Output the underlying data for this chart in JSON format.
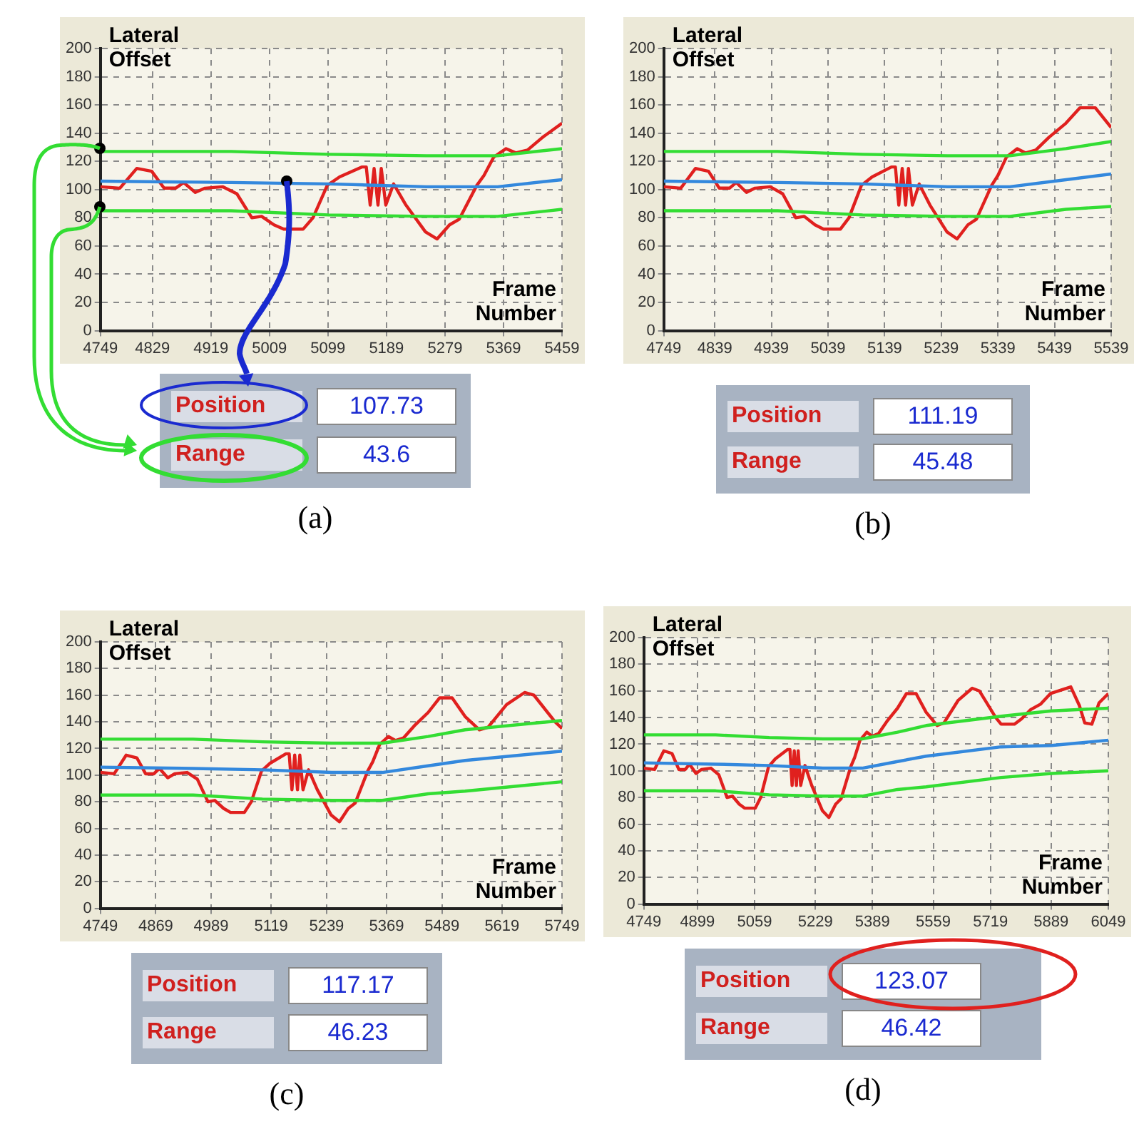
{
  "chart_data": [
    {
      "type": "line",
      "xlabel": "Frame Number",
      "ylabel": "Lateral Offset",
      "xlim": [
        4749,
        5459
      ],
      "xticks": [
        4749,
        4829,
        4919,
        5009,
        5099,
        5189,
        5279,
        5369,
        5459
      ],
      "ylim": [
        0,
        200
      ],
      "yticks": [
        0,
        20,
        40,
        60,
        80,
        100,
        120,
        140,
        160,
        180,
        200
      ],
      "grid": true,
      "marker": "none",
      "series": [
        {
          "color": "#33dd33",
          "x": [
            4749,
            4950,
            5100,
            5250,
            5360,
            5459
          ],
          "values": [
            127,
            127,
            125,
            124,
            124,
            129
          ]
        },
        {
          "color": "#3388dd",
          "x": [
            4749,
            4950,
            5100,
            5250,
            5360,
            5459
          ],
          "values": [
            106,
            105,
            104,
            102,
            102,
            107
          ]
        },
        {
          "color": "#33dd33",
          "x": [
            4749,
            4950,
            5100,
            5250,
            5360,
            5459
          ],
          "values": [
            85,
            85,
            82,
            81,
            81,
            86
          ]
        },
        {
          "color": "#e0201e",
          "x": [
            4749,
            4779,
            4805,
            4828,
            4847,
            4865,
            4877,
            4895,
            4910,
            4937,
            4959,
            4982,
            4997,
            5016,
            5031,
            5061,
            5076,
            5098,
            5117,
            5151,
            5158,
            5164,
            5170,
            5176,
            5181,
            5188,
            5200,
            5219,
            5249,
            5267,
            5286,
            5301,
            5328,
            5339,
            5354,
            5373,
            5388,
            5406,
            5429,
            5459
          ],
          "values": [
            102,
            101,
            115,
            113,
            101,
            101,
            105,
            98,
            101,
            102,
            97,
            80,
            81,
            75,
            72,
            72,
            80,
            103,
            109,
            116,
            116,
            89,
            115,
            89,
            115,
            89,
            104,
            89,
            70,
            65,
            75,
            79,
            103,
            110,
            123,
            129,
            126,
            128,
            137,
            147
          ]
        }
      ]
    },
    {
      "type": "line",
      "xlabel": "Frame Number",
      "ylabel": "Lateral Offset",
      "xlim": [
        4749,
        5539
      ],
      "xticks": [
        4749,
        4839,
        4939,
        5039,
        5139,
        5239,
        5339,
        5439,
        5539
      ],
      "ylim": [
        0,
        200
      ],
      "yticks": [
        0,
        20,
        40,
        60,
        80,
        100,
        120,
        140,
        160,
        180,
        200
      ],
      "grid": true,
      "marker": "none",
      "series": [
        {
          "color": "#33dd33",
          "x": [
            4749,
            4950,
            5100,
            5250,
            5360,
            5459,
            5539
          ],
          "values": [
            127,
            127,
            125,
            124,
            124,
            129,
            134
          ]
        },
        {
          "color": "#3388dd",
          "x": [
            4749,
            4950,
            5100,
            5250,
            5360,
            5459,
            5539
          ],
          "values": [
            106,
            105,
            104,
            102,
            102,
            107,
            111
          ]
        },
        {
          "color": "#33dd33",
          "x": [
            4749,
            4950,
            5100,
            5250,
            5360,
            5459,
            5539
          ],
          "values": [
            85,
            85,
            82,
            81,
            81,
            86,
            88
          ]
        },
        {
          "color": "#e0201e",
          "x": [
            4749,
            4779,
            4805,
            4828,
            4847,
            4865,
            4877,
            4895,
            4910,
            4937,
            4959,
            4982,
            4997,
            5016,
            5031,
            5061,
            5076,
            5098,
            5117,
            5151,
            5158,
            5164,
            5170,
            5176,
            5181,
            5188,
            5200,
            5219,
            5249,
            5267,
            5286,
            5301,
            5328,
            5339,
            5354,
            5373,
            5388,
            5406,
            5429,
            5459,
            5484,
            5511,
            5539
          ],
          "values": [
            102,
            101,
            115,
            113,
            101,
            101,
            105,
            98,
            101,
            102,
            97,
            80,
            81,
            75,
            72,
            72,
            80,
            103,
            109,
            116,
            116,
            89,
            115,
            89,
            115,
            89,
            104,
            89,
            70,
            65,
            75,
            79,
            103,
            110,
            123,
            129,
            126,
            128,
            137,
            147,
            158,
            158,
            144
          ]
        }
      ]
    },
    {
      "type": "other",
      "categories": [
        "Position",
        "Range"
      ],
      "values": [
        107.73,
        43.6
      ],
      "data_labels": true,
      "annotations": [
        "(a)"
      ]
    },
    {
      "type": "other",
      "categories": [
        "Position",
        "Range"
      ],
      "values": [
        111.19,
        45.48
      ],
      "data_labels": true,
      "annotations": [
        "(b)"
      ]
    },
    {
      "type": "line",
      "xlabel": "Frame Number",
      "ylabel": "Lateral Offset",
      "xlim": [
        4749,
        5749
      ],
      "xticks": [
        4749,
        4869,
        4989,
        5119,
        5239,
        5369,
        5489,
        5619,
        5749
      ],
      "ylim": [
        0,
        200
      ],
      "yticks": [
        0,
        20,
        40,
        60,
        80,
        100,
        120,
        140,
        160,
        180,
        200
      ],
      "grid": true,
      "marker": "none",
      "series": [
        {
          "color": "#33dd33",
          "x": [
            4749,
            4950,
            5100,
            5250,
            5360,
            5459,
            5539,
            5749
          ],
          "values": [
            127,
            127,
            125,
            124,
            124,
            129,
            134,
            141
          ]
        },
        {
          "color": "#3388dd",
          "x": [
            4749,
            4950,
            5100,
            5250,
            5360,
            5459,
            5539,
            5749
          ],
          "values": [
            106,
            105,
            104,
            102,
            102,
            107,
            111,
            118
          ]
        },
        {
          "color": "#33dd33",
          "x": [
            4749,
            4950,
            5100,
            5250,
            5360,
            5459,
            5539,
            5749
          ],
          "values": [
            85,
            85,
            82,
            81,
            81,
            86,
            88,
            95
          ]
        },
        {
          "color": "#e0201e",
          "x": [
            4749,
            4779,
            4805,
            4828,
            4847,
            4865,
            4877,
            4895,
            4910,
            4937,
            4959,
            4982,
            4997,
            5016,
            5031,
            5061,
            5076,
            5098,
            5117,
            5151,
            5158,
            5164,
            5170,
            5176,
            5181,
            5188,
            5200,
            5219,
            5249,
            5267,
            5286,
            5301,
            5328,
            5339,
            5354,
            5373,
            5388,
            5406,
            5429,
            5459,
            5484,
            5511,
            5539,
            5570,
            5589,
            5629,
            5668,
            5688,
            5734,
            5749
          ],
          "values": [
            102,
            101,
            115,
            113,
            101,
            101,
            105,
            98,
            101,
            102,
            97,
            80,
            81,
            75,
            72,
            72,
            80,
            103,
            109,
            116,
            116,
            89,
            115,
            89,
            115,
            89,
            104,
            89,
            70,
            65,
            75,
            79,
            103,
            110,
            123,
            129,
            126,
            128,
            137,
            147,
            158,
            158,
            144,
            134,
            136,
            153,
            162,
            160,
            140,
            135
          ]
        }
      ]
    },
    {
      "type": "line",
      "xlabel": "Frame Number",
      "ylabel": "Lateral Offset",
      "xlim": [
        4749,
        6049
      ],
      "xticks": [
        4749,
        4899,
        5059,
        5229,
        5389,
        5559,
        5719,
        5889,
        6049
      ],
      "ylim": [
        0,
        200
      ],
      "yticks": [
        0,
        20,
        40,
        60,
        80,
        100,
        120,
        140,
        160,
        180,
        200
      ],
      "grid": true,
      "marker": "none",
      "series": [
        {
          "color": "#33dd33",
          "x": [
            4749,
            4950,
            5100,
            5250,
            5360,
            5459,
            5539,
            5749,
            5890,
            6049
          ],
          "values": [
            127,
            127,
            125,
            124,
            124,
            129,
            134,
            141,
            145,
            147
          ]
        },
        {
          "color": "#3388dd",
          "x": [
            4749,
            4950,
            5100,
            5250,
            5360,
            5459,
            5539,
            5749,
            5890,
            6049
          ],
          "values": [
            106,
            105,
            104,
            102,
            102,
            107,
            111,
            118,
            119,
            123
          ]
        },
        {
          "color": "#33dd33",
          "x": [
            4749,
            4950,
            5100,
            5250,
            5360,
            5459,
            5539,
            5749,
            5890,
            6049
          ],
          "values": [
            85,
            85,
            82,
            81,
            81,
            86,
            88,
            95,
            98,
            100
          ]
        },
        {
          "color": "#e0201e",
          "x": [
            4749,
            4779,
            4805,
            4828,
            4847,
            4865,
            4877,
            4895,
            4910,
            4937,
            4959,
            4982,
            4997,
            5016,
            5031,
            5061,
            5076,
            5098,
            5117,
            5151,
            5158,
            5164,
            5170,
            5176,
            5181,
            5188,
            5200,
            5219,
            5249,
            5267,
            5286,
            5301,
            5328,
            5339,
            5354,
            5373,
            5388,
            5406,
            5429,
            5459,
            5484,
            5511,
            5539,
            5570,
            5589,
            5629,
            5668,
            5688,
            5734,
            5749,
            5786,
            5806,
            5832,
            5859,
            5887,
            5944,
            5968,
            5983,
            6003,
            6023,
            6049
          ],
          "values": [
            102,
            101,
            115,
            113,
            101,
            101,
            105,
            98,
            101,
            102,
            97,
            80,
            81,
            75,
            72,
            72,
            80,
            103,
            109,
            116,
            116,
            89,
            115,
            89,
            115,
            89,
            104,
            89,
            70,
            65,
            75,
            79,
            103,
            110,
            123,
            129,
            126,
            128,
            137,
            147,
            158,
            158,
            144,
            134,
            136,
            153,
            162,
            160,
            140,
            135,
            135,
            139,
            146,
            150,
            158,
            163,
            149,
            136,
            135,
            151,
            158
          ]
        }
      ]
    },
    {
      "type": "other",
      "categories": [
        "Position",
        "Range"
      ],
      "values": [
        117.17,
        46.23
      ],
      "data_labels": true,
      "annotations": [
        "(c)"
      ]
    },
    {
      "type": "other",
      "categories": [
        "Position",
        "Range"
      ],
      "values": [
        123.07,
        46.42
      ],
      "data_labels": true,
      "annotations": [
        "(d)"
      ]
    }
  ]
}
